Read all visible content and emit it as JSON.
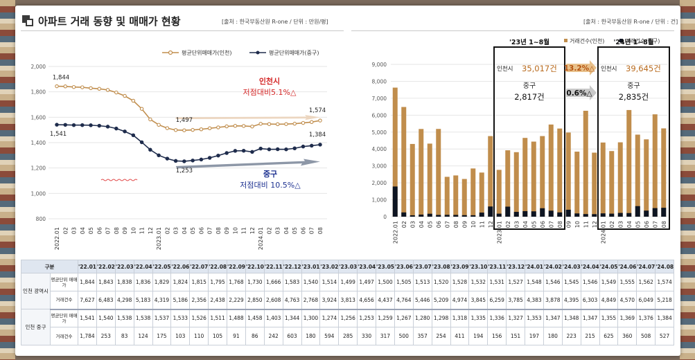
{
  "header": {
    "title": "아파트 거래 동향 및 매매가 현황",
    "source_left": "[출처 : 한국부동산원 R-one / 단위 : 만원/평]",
    "source_right": "[출처 : 한국부동산원 R-one / 단위 : 건]"
  },
  "colors": {
    "incheon": "#c08d4c",
    "junggu": "#1f2c4c",
    "red": "#d42626",
    "navy": "#1d3190"
  },
  "chart_data": [
    {
      "type": "line",
      "x": [
        "2022.01",
        "02",
        "03",
        "04",
        "05",
        "06",
        "07",
        "08",
        "09",
        "10",
        "11",
        "12",
        "2023.01",
        "02",
        "03",
        "04",
        "05",
        "06",
        "07",
        "08",
        "09",
        "10",
        "11",
        "12",
        "2024.01",
        "02",
        "03",
        "04",
        "05",
        "06",
        "07",
        "08"
      ],
      "ylim": [
        800,
        2000
      ],
      "yticks": [
        "2,000",
        "1,800",
        "1,600",
        "1,400",
        "1,200",
        "1,000",
        "800"
      ],
      "series": [
        {
          "name": "평균단위매매가(인천)",
          "values": [
            1844,
            1843,
            1838,
            1836,
            1829,
            1824,
            1815,
            1795,
            1768,
            1730,
            1666,
            1583,
            1540,
            1514,
            1499,
            1497,
            1500,
            1505,
            1513,
            1520,
            1528,
            1532,
            1531,
            1527,
            1548,
            1546,
            1545,
            1546,
            1549,
            1555,
            1562,
            1574
          ]
        },
        {
          "name": "평균단위매매가(중구)",
          "values": [
            1541,
            1540,
            1538,
            1538,
            1537,
            1533,
            1526,
            1511,
            1488,
            1458,
            1403,
            1344,
            1300,
            1274,
            1256,
            1253,
            1259,
            1267,
            1280,
            1298,
            1318,
            1335,
            1336,
            1327,
            1353,
            1347,
            1348,
            1347,
            1355,
            1369,
            1376,
            1384
          ]
        }
      ],
      "point_labels": [
        "1,844",
        "1,541",
        "1,497",
        "1,253",
        "1,574",
        "1,384"
      ],
      "annotations": {
        "incheon_1": "인천시",
        "incheon_2": "저점대비5.1%△",
        "junggu_1": "중구",
        "junggu_2": "저점대비 10.5%△"
      }
    },
    {
      "type": "bar",
      "x": [
        "2022.01",
        "02",
        "03",
        "04",
        "05",
        "06",
        "07",
        "08",
        "09",
        "10",
        "11",
        "12",
        "2023.01",
        "02",
        "03",
        "04",
        "05",
        "06",
        "07",
        "08",
        "09",
        "10",
        "11",
        "12",
        "2024.01",
        "02",
        "03",
        "04",
        "05",
        "06",
        "07",
        "08"
      ],
      "ylim": [
        0,
        9000
      ],
      "yticks": [
        "9,000",
        "8,000",
        "7,000",
        "6,000",
        "5,000",
        "4,000",
        "3,000",
        "2,000",
        "1,000",
        "0"
      ],
      "series": [
        {
          "name": "거래건수(인천)",
          "values": [
            7627,
            6483,
            4298,
            5183,
            4319,
            5186,
            2356,
            2438,
            2229,
            2850,
            2608,
            4763,
            2768,
            3924,
            3813,
            4656,
            4437,
            4764,
            5446,
            5209,
            4974,
            3845,
            6259,
            3785,
            4383,
            3878,
            4395,
            6303,
            4849,
            4570,
            6049,
            5218
          ]
        },
        {
          "name": "거래건수(중구)",
          "values": [
            1784,
            253,
            83,
            124,
            175,
            103,
            110,
            105,
            91,
            86,
            242,
            603,
            180,
            594,
            285,
            330,
            317,
            500,
            357,
            254,
            411,
            194,
            156,
            151,
            197,
            180,
            223,
            215,
            625,
            360,
            508,
            527
          ]
        }
      ],
      "annotations": {
        "box_2023": "'23년 1~8월",
        "box_2024": "'24년 1~8월",
        "incheon_label": "인천시",
        "incheon_2023": "35,017건",
        "incheon_2024": "39,645건",
        "junggu_label": "중구",
        "junggu_2023": "2,817건",
        "junggu_2024": "2,835건",
        "pct_incheon": "13.2%△",
        "pct_junggu": "0.6%△"
      }
    }
  ],
  "table": {
    "header_label": "구분",
    "months": [
      "'22.01",
      "'22.02",
      "'22.03",
      "'22.04",
      "'22.05",
      "'22.06",
      "'22.07",
      "'22.08",
      "'22.09",
      "'22.10",
      "'22.11",
      "'22.12",
      "'23.01",
      "'23.02",
      "'23.03",
      "'23.04",
      "'23.05",
      "'23.06",
      "'23.07",
      "'23.08",
      "'23.09",
      "'23.10",
      "'23.11",
      "'23.12",
      "'24.01",
      "'24.02",
      "'24.03",
      "'24.04",
      "'24.05",
      "'24.06",
      "'24.07",
      "'24.08"
    ],
    "groups": [
      {
        "name": "인천 광역시",
        "rows": [
          {
            "label": "평균단위 매매가",
            "values": [
              "1,844",
              "1,843",
              "1,838",
              "1,836",
              "1,829",
              "1,824",
              "1,815",
              "1,795",
              "1,768",
              "1,730",
              "1,666",
              "1,583",
              "1,540",
              "1,514",
              "1,499",
              "1,497",
              "1,500",
              "1,505",
              "1,513",
              "1,520",
              "1,528",
              "1,532",
              "1,531",
              "1,527",
              "1,548",
              "1,546",
              "1,545",
              "1,546",
              "1,549",
              "1,555",
              "1,562",
              "1,574"
            ]
          },
          {
            "label": "거래건수",
            "values": [
              "7,627",
              "6,483",
              "4,298",
              "5,183",
              "4,319",
              "5,186",
              "2,356",
              "2,438",
              "2,229",
              "2,850",
              "2,608",
              "4,763",
              "2,768",
              "3,924",
              "3,813",
              "4,656",
              "4,437",
              "4,764",
              "5,446",
              "5,209",
              "4,974",
              "3,845",
              "6,259",
              "3,785",
              "4,383",
              "3,878",
              "4,395",
              "6,303",
              "4,849",
              "4,570",
              "6,049",
              "5,218"
            ]
          }
        ]
      },
      {
        "name": "인천 중구",
        "rows": [
          {
            "label": "평균단위 매매가",
            "values": [
              "1,541",
              "1,540",
              "1,538",
              "1,538",
              "1,537",
              "1,533",
              "1,526",
              "1,511",
              "1,488",
              "1,458",
              "1,403",
              "1,344",
              "1,300",
              "1,274",
              "1,256",
              "1,253",
              "1,259",
              "1,267",
              "1,280",
              "1,298",
              "1,318",
              "1,335",
              "1,336",
              "1,327",
              "1,353",
              "1,347",
              "1,348",
              "1,347",
              "1,355",
              "1,369",
              "1,376",
              "1,384"
            ]
          },
          {
            "label": "거래건수",
            "values": [
              "1,784",
              "253",
              "83",
              "124",
              "175",
              "103",
              "110",
              "105",
              "91",
              "86",
              "242",
              "603",
              "180",
              "594",
              "285",
              "330",
              "317",
              "500",
              "357",
              "254",
              "411",
              "194",
              "156",
              "151",
              "197",
              "180",
              "223",
              "215",
              "625",
              "360",
              "508",
              "527"
            ]
          }
        ]
      }
    ]
  }
}
